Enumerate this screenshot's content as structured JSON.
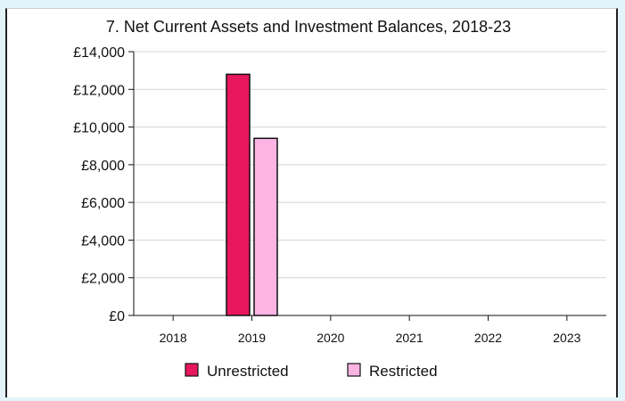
{
  "chart_data": {
    "type": "bar",
    "title": "7. Net Current Assets and Investment Balances, 2018-23",
    "categories": [
      "2018",
      "2019",
      "2020",
      "2021",
      "2022",
      "2023"
    ],
    "series": [
      {
        "name": "Unrestricted",
        "color": "#e8175d",
        "values": [
          0,
          12800,
          0,
          0,
          0,
          0
        ]
      },
      {
        "name": "Restricted",
        "color": "#fbb4e4",
        "values": [
          0,
          9400,
          0,
          0,
          0,
          0
        ]
      }
    ],
    "yticks": [
      "£0",
      "£2,000",
      "£4,000",
      "£6,000",
      "£8,000",
      "£10,000",
      "£12,000",
      "£14,000"
    ],
    "ylim": [
      0,
      14000
    ],
    "grid": true,
    "legend_position": "bottom",
    "xlabel": "",
    "ylabel": ""
  }
}
